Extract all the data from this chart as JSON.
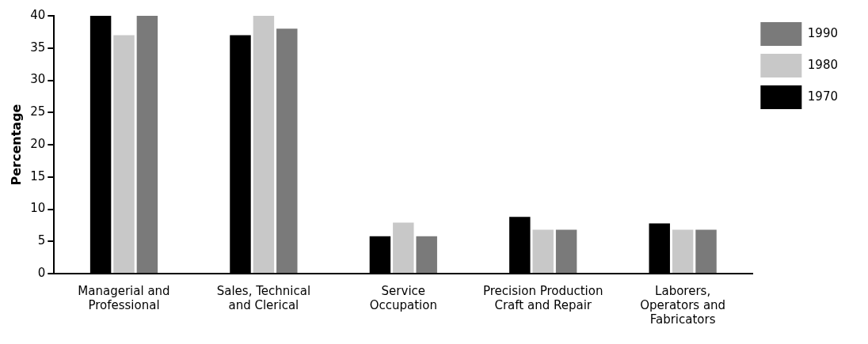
{
  "chart_data": {
    "type": "bar",
    "ylabel": "Percentage",
    "categories": [
      "Managerial and\nProfessional",
      "Sales, Technical\nand Clerical",
      "Service\nOccupation",
      "Precision Production\nCraft and Repair",
      "Laborers,\nOperators and\nFabricators"
    ],
    "series": [
      {
        "name": "1970",
        "color": "#000000",
        "values": [
          40,
          37,
          5.8,
          8.8,
          7.8
        ]
      },
      {
        "name": "1980",
        "color": "#c8c8c8",
        "values": [
          37,
          40,
          7.9,
          6.8,
          6.8
        ]
      },
      {
        "name": "1990",
        "color": "#7a7a7a",
        "values": [
          40,
          38,
          5.8,
          6.8,
          6.8
        ]
      }
    ],
    "ylim": [
      0,
      40
    ],
    "yticks": [
      0,
      5,
      10,
      15,
      20,
      25,
      30,
      35,
      40
    ],
    "grid": false,
    "legend": "top right"
  }
}
